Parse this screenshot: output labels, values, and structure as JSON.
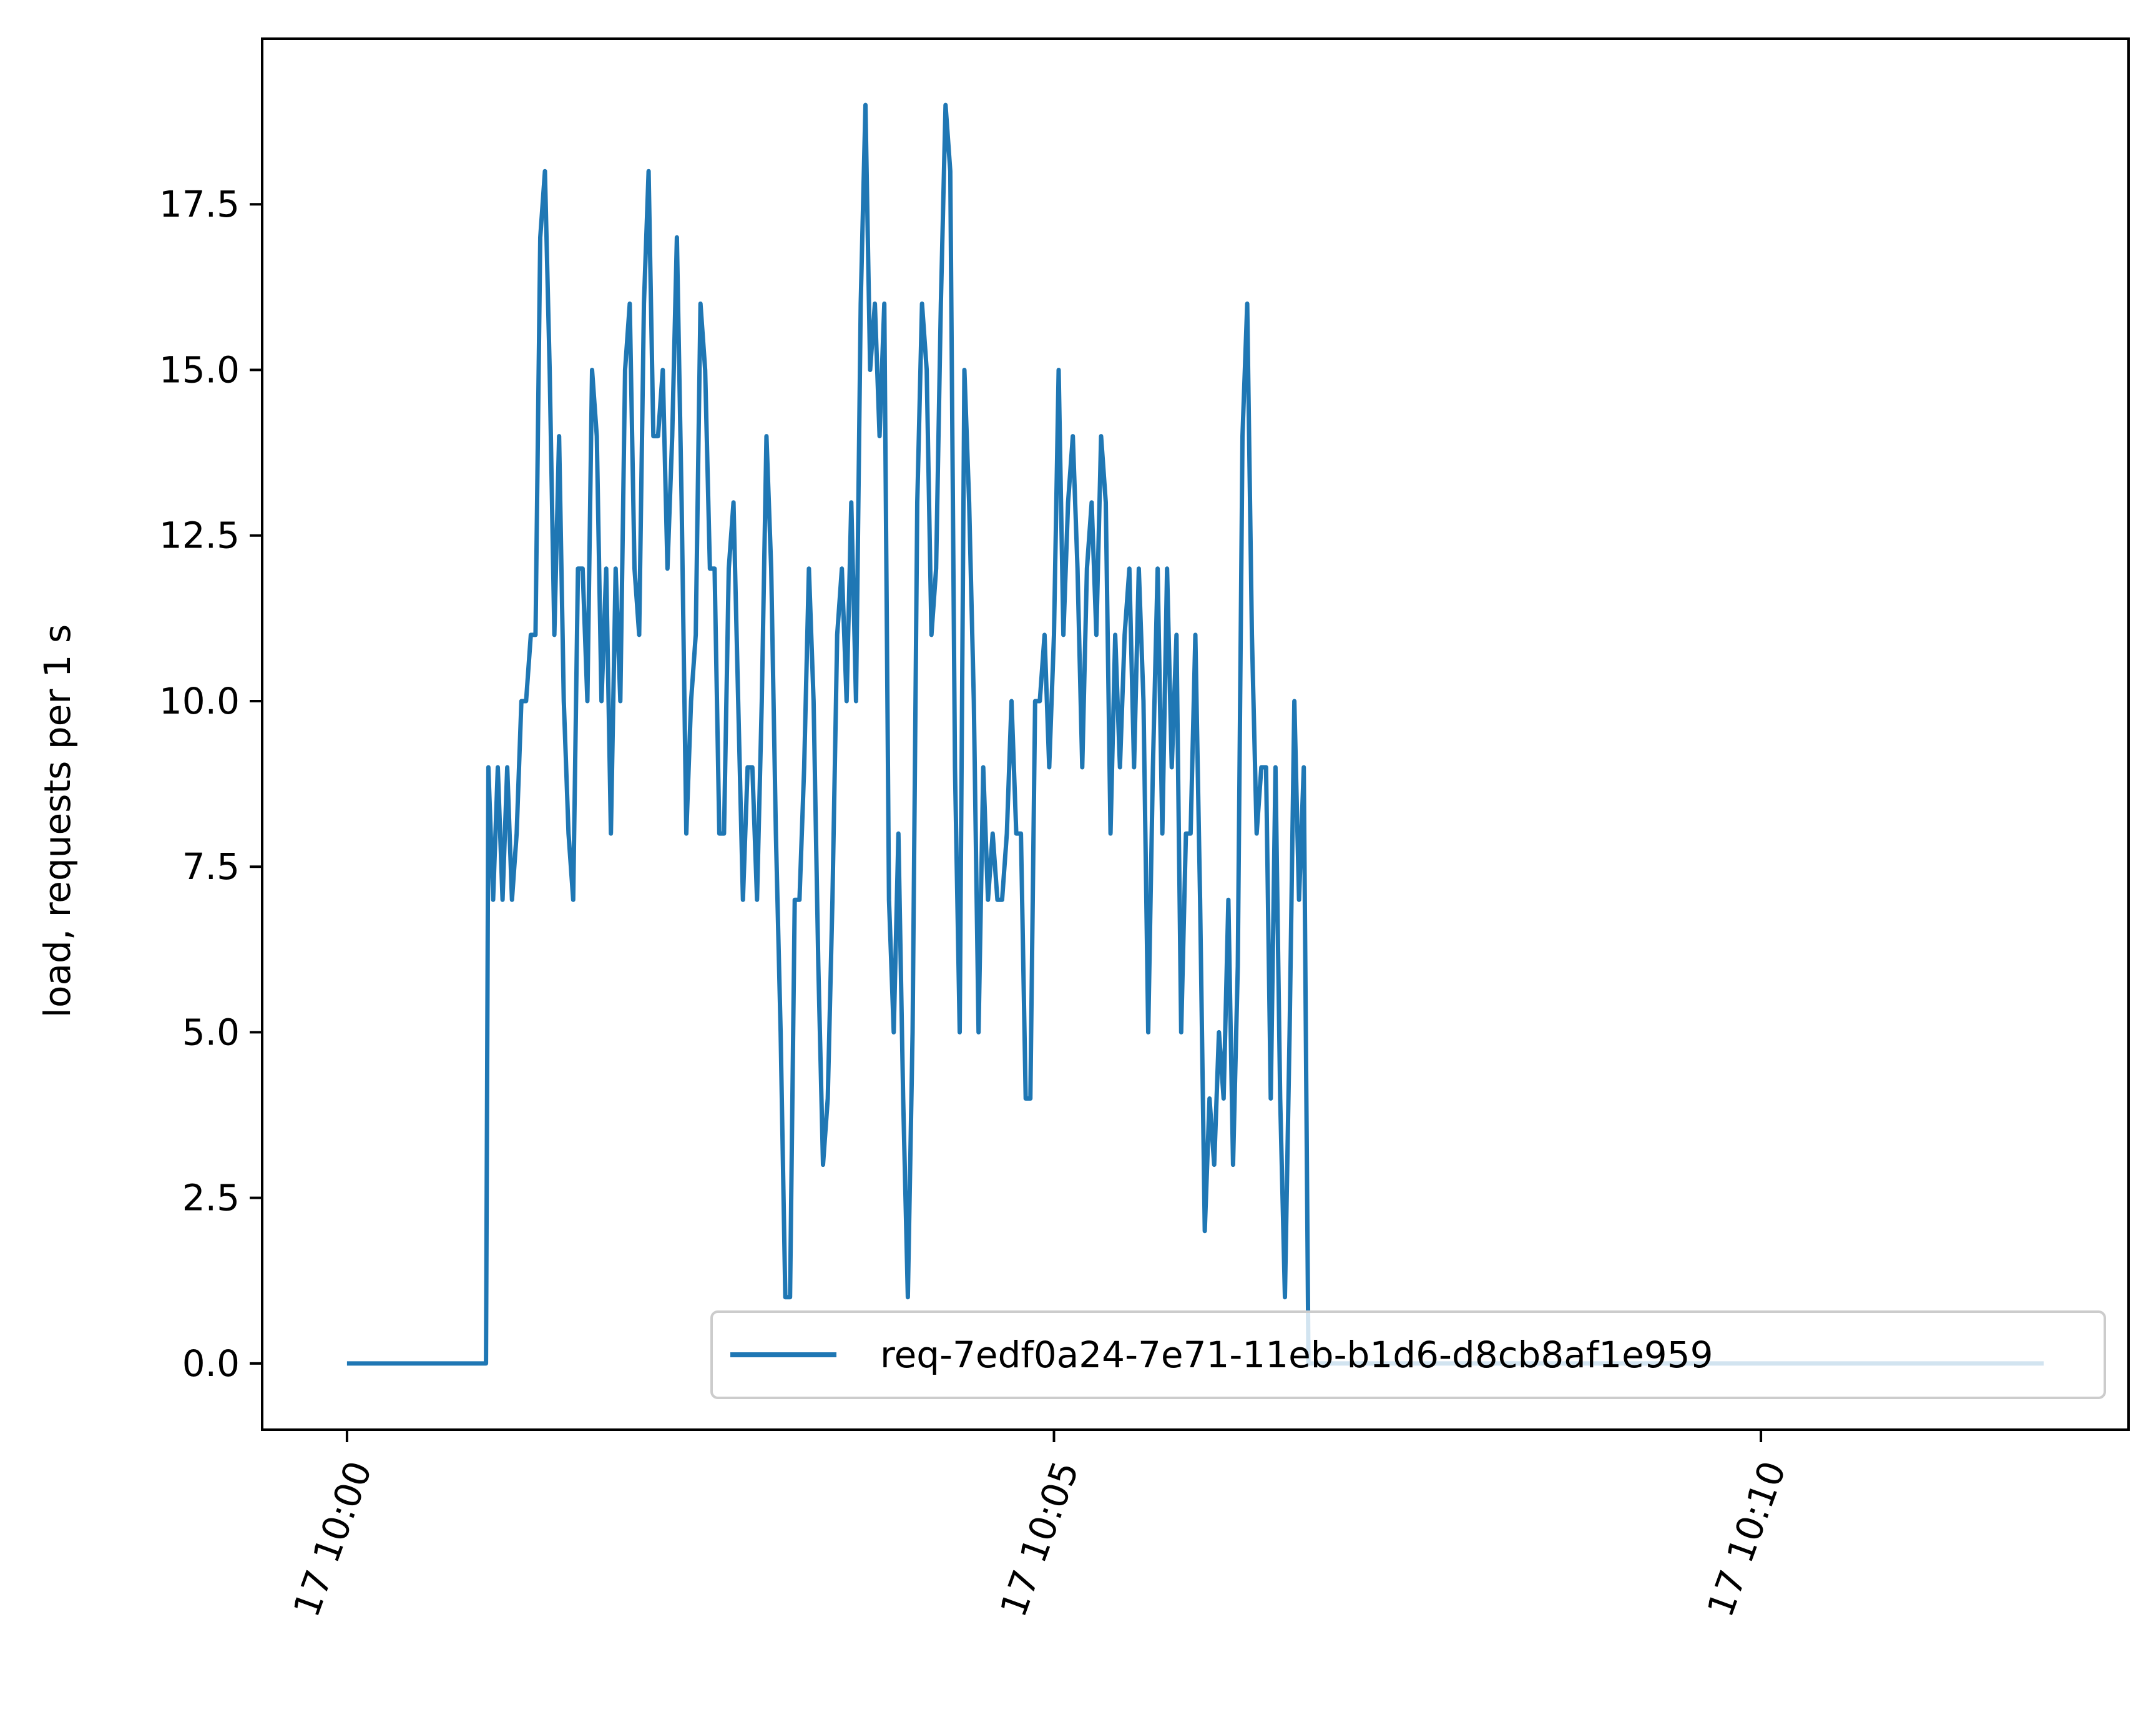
{
  "chart_data": {
    "type": "line",
    "title": "",
    "xlabel": "",
    "ylabel": "load, requests per 1 s",
    "ylim": [
      -1.0,
      20.0
    ],
    "xlim": [
      "10:00:00",
      "10:12:00"
    ],
    "x_ticks": [
      {
        "value": "10:00:00",
        "label": "17 10:00"
      },
      {
        "value": "10:05:00",
        "label": "17 10:05"
      },
      {
        "value": "10:10:00",
        "label": "17 10:10"
      }
    ],
    "y_ticks": [
      {
        "value": 0,
        "label": "0.0"
      },
      {
        "value": 2.5,
        "label": "2.5"
      },
      {
        "value": 5,
        "label": "5.0"
      },
      {
        "value": 7.5,
        "label": "7.5"
      },
      {
        "value": 10,
        "label": "10.0"
      },
      {
        "value": 12.5,
        "label": "12.5"
      },
      {
        "value": 15,
        "label": "15.0"
      },
      {
        "value": 17.5,
        "label": "17.5"
      }
    ],
    "grid": false,
    "legend": {
      "position": "lower-right"
    },
    "series": [
      {
        "name": "req-7edf0a24-7e71-11eb-b1d6-d8cb8af1e959",
        "color": "#1f77b4",
        "points": [
          [
            "10:00:00",
            0
          ],
          [
            "10:00:30",
            0
          ],
          [
            "10:00:59",
            0
          ],
          [
            "10:01:00",
            9
          ],
          [
            "10:01:02",
            7
          ],
          [
            "10:01:04",
            9
          ],
          [
            "10:01:06",
            7
          ],
          [
            "10:01:08",
            9
          ],
          [
            "10:01:10",
            7
          ],
          [
            "10:01:12",
            8
          ],
          [
            "10:01:14",
            10
          ],
          [
            "10:01:16",
            10
          ],
          [
            "10:01:18",
            11
          ],
          [
            "10:01:20",
            11
          ],
          [
            "10:01:22",
            17
          ],
          [
            "10:01:24",
            18
          ],
          [
            "10:01:26",
            15
          ],
          [
            "10:01:28",
            11
          ],
          [
            "10:01:30",
            14
          ],
          [
            "10:01:32",
            10
          ],
          [
            "10:01:34",
            8
          ],
          [
            "10:01:36",
            7
          ],
          [
            "10:01:38",
            12
          ],
          [
            "10:01:40",
            12
          ],
          [
            "10:01:42",
            10
          ],
          [
            "10:01:44",
            15
          ],
          [
            "10:01:46",
            14
          ],
          [
            "10:01:48",
            10
          ],
          [
            "10:01:50",
            12
          ],
          [
            "10:01:52",
            8
          ],
          [
            "10:01:54",
            12
          ],
          [
            "10:01:56",
            10
          ],
          [
            "10:01:58",
            15
          ],
          [
            "10:02:00",
            16
          ],
          [
            "10:02:02",
            12
          ],
          [
            "10:02:04",
            11
          ],
          [
            "10:02:06",
            16
          ],
          [
            "10:02:08",
            18
          ],
          [
            "10:02:10",
            14
          ],
          [
            "10:02:12",
            14
          ],
          [
            "10:02:14",
            15
          ],
          [
            "10:02:16",
            12
          ],
          [
            "10:02:18",
            14
          ],
          [
            "10:02:20",
            17
          ],
          [
            "10:02:22",
            13
          ],
          [
            "10:02:24",
            8
          ],
          [
            "10:02:26",
            10
          ],
          [
            "10:02:28",
            11
          ],
          [
            "10:02:30",
            16
          ],
          [
            "10:02:32",
            15
          ],
          [
            "10:02:34",
            12
          ],
          [
            "10:02:36",
            12
          ],
          [
            "10:02:38",
            8
          ],
          [
            "10:02:40",
            8
          ],
          [
            "10:02:42",
            12
          ],
          [
            "10:02:44",
            13
          ],
          [
            "10:02:46",
            10
          ],
          [
            "10:02:48",
            7
          ],
          [
            "10:02:50",
            9
          ],
          [
            "10:02:52",
            9
          ],
          [
            "10:02:54",
            7
          ],
          [
            "10:02:56",
            10
          ],
          [
            "10:02:58",
            14
          ],
          [
            "10:03:00",
            12
          ],
          [
            "10:03:02",
            8
          ],
          [
            "10:03:04",
            5
          ],
          [
            "10:03:06",
            1
          ],
          [
            "10:03:08",
            1
          ],
          [
            "10:03:10",
            7
          ],
          [
            "10:03:12",
            7
          ],
          [
            "10:03:14",
            9
          ],
          [
            "10:03:16",
            12
          ],
          [
            "10:03:18",
            10
          ],
          [
            "10:03:20",
            6
          ],
          [
            "10:03:22",
            3
          ],
          [
            "10:03:24",
            4
          ],
          [
            "10:03:26",
            7
          ],
          [
            "10:03:28",
            11
          ],
          [
            "10:03:30",
            12
          ],
          [
            "10:03:32",
            10
          ],
          [
            "10:03:34",
            13
          ],
          [
            "10:03:36",
            10
          ],
          [
            "10:03:38",
            16
          ],
          [
            "10:03:40",
            19
          ],
          [
            "10:03:42",
            15
          ],
          [
            "10:03:44",
            16
          ],
          [
            "10:03:46",
            14
          ],
          [
            "10:03:48",
            16
          ],
          [
            "10:03:50",
            7
          ],
          [
            "10:03:52",
            5
          ],
          [
            "10:03:54",
            8
          ],
          [
            "10:03:56",
            4
          ],
          [
            "10:03:58",
            1
          ],
          [
            "10:04:00",
            5
          ],
          [
            "10:04:02",
            13
          ],
          [
            "10:04:04",
            16
          ],
          [
            "10:04:06",
            15
          ],
          [
            "10:04:08",
            11
          ],
          [
            "10:04:10",
            12
          ],
          [
            "10:04:12",
            16
          ],
          [
            "10:04:14",
            19
          ],
          [
            "10:04:16",
            18
          ],
          [
            "10:04:18",
            9
          ],
          [
            "10:04:20",
            5
          ],
          [
            "10:04:22",
            15
          ],
          [
            "10:04:24",
            13
          ],
          [
            "10:04:26",
            10
          ],
          [
            "10:04:28",
            5
          ],
          [
            "10:04:30",
            9
          ],
          [
            "10:04:32",
            7
          ],
          [
            "10:04:34",
            8
          ],
          [
            "10:04:36",
            7
          ],
          [
            "10:04:38",
            7
          ],
          [
            "10:04:40",
            8
          ],
          [
            "10:04:42",
            10
          ],
          [
            "10:04:44",
            8
          ],
          [
            "10:04:46",
            8
          ],
          [
            "10:04:48",
            4
          ],
          [
            "10:04:50",
            4
          ],
          [
            "10:04:52",
            10
          ],
          [
            "10:04:54",
            10
          ],
          [
            "10:04:56",
            11
          ],
          [
            "10:04:58",
            9
          ],
          [
            "10:05:00",
            11
          ],
          [
            "10:05:02",
            15
          ],
          [
            "10:05:04",
            11
          ],
          [
            "10:05:06",
            13
          ],
          [
            "10:05:08",
            14
          ],
          [
            "10:05:10",
            12
          ],
          [
            "10:05:12",
            9
          ],
          [
            "10:05:14",
            12
          ],
          [
            "10:05:16",
            13
          ],
          [
            "10:05:18",
            11
          ],
          [
            "10:05:20",
            14
          ],
          [
            "10:05:22",
            13
          ],
          [
            "10:05:24",
            8
          ],
          [
            "10:05:26",
            11
          ],
          [
            "10:05:28",
            9
          ],
          [
            "10:05:30",
            11
          ],
          [
            "10:05:32",
            12
          ],
          [
            "10:05:34",
            9
          ],
          [
            "10:05:36",
            12
          ],
          [
            "10:05:38",
            10
          ],
          [
            "10:05:40",
            5
          ],
          [
            "10:05:42",
            9
          ],
          [
            "10:05:44",
            12
          ],
          [
            "10:05:46",
            8
          ],
          [
            "10:05:48",
            12
          ],
          [
            "10:05:50",
            9
          ],
          [
            "10:05:52",
            11
          ],
          [
            "10:05:54",
            5
          ],
          [
            "10:05:56",
            8
          ],
          [
            "10:05:58",
            8
          ],
          [
            "10:06:00",
            11
          ],
          [
            "10:06:02",
            7
          ],
          [
            "10:06:04",
            2
          ],
          [
            "10:06:06",
            4
          ],
          [
            "10:06:08",
            3
          ],
          [
            "10:06:10",
            5
          ],
          [
            "10:06:12",
            4
          ],
          [
            "10:06:14",
            7
          ],
          [
            "10:06:16",
            3
          ],
          [
            "10:06:18",
            6
          ],
          [
            "10:06:20",
            14
          ],
          [
            "10:06:22",
            16
          ],
          [
            "10:06:24",
            11
          ],
          [
            "10:06:26",
            8
          ],
          [
            "10:06:28",
            9
          ],
          [
            "10:06:30",
            9
          ],
          [
            "10:06:32",
            4
          ],
          [
            "10:06:34",
            9
          ],
          [
            "10:06:36",
            4
          ],
          [
            "10:06:38",
            1
          ],
          [
            "10:06:40",
            5
          ],
          [
            "10:06:42",
            10
          ],
          [
            "10:06:44",
            7
          ],
          [
            "10:06:46",
            9
          ],
          [
            "10:06:48",
            0
          ],
          [
            "10:09:00",
            0
          ],
          [
            "10:12:00",
            0
          ]
        ]
      }
    ]
  }
}
